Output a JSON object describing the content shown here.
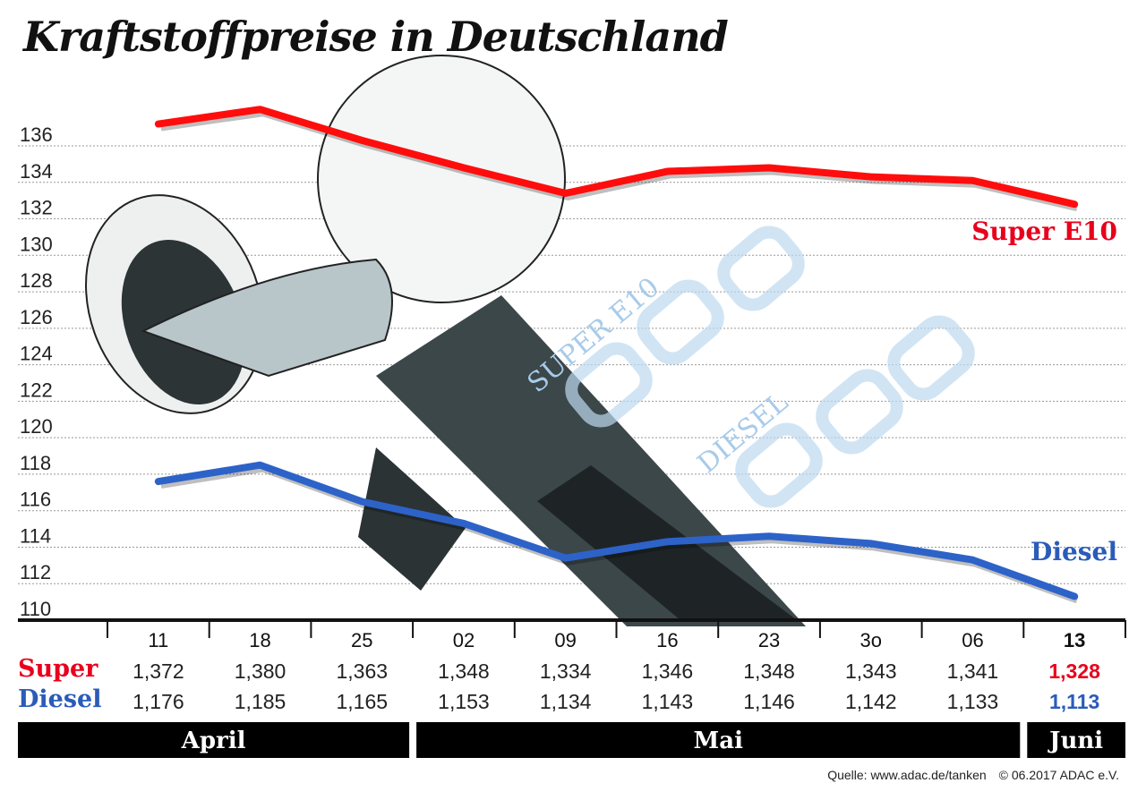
{
  "chart_data": {
    "type": "line",
    "title": "Kraftstoffpreise in Deutschland",
    "ylim": [
      110,
      136
    ],
    "yticks": [
      110,
      112,
      114,
      116,
      118,
      120,
      122,
      124,
      126,
      128,
      130,
      132,
      134,
      136
    ],
    "grid": true,
    "categories": [
      "11",
      "18",
      "25",
      "02",
      "09",
      "16",
      "23",
      "3o",
      "06",
      "13"
    ],
    "months": [
      {
        "label": "April",
        "span": 3
      },
      {
        "label": "Mai",
        "span": 6
      },
      {
        "label": "Juni",
        "span": 1
      }
    ],
    "series": [
      {
        "name": "Super E10",
        "row_label": "Super",
        "color": "#e8001c",
        "line_color": "#ff0d0d",
        "values": [
          137.2,
          138.0,
          136.3,
          134.8,
          133.4,
          134.6,
          134.8,
          134.3,
          134.1,
          132.8
        ],
        "table": [
          "1,372",
          "1,380",
          "1,363",
          "1,348",
          "1,334",
          "1,346",
          "1,348",
          "1,343",
          "1,341",
          "1,328"
        ]
      },
      {
        "name": "Diesel",
        "row_label": "Diesel",
        "color": "#2a5cb8",
        "line_color": "#2d63c8",
        "values": [
          117.6,
          118.5,
          116.5,
          115.3,
          113.4,
          114.3,
          114.6,
          114.2,
          113.3,
          111.3
        ],
        "table": [
          "1,176",
          "1,185",
          "1,165",
          "1,153",
          "1,134",
          "1,143",
          "1,146",
          "1,142",
          "1,133",
          "1,113"
        ]
      }
    ],
    "background_labels": [
      "SUPER E10",
      "DIESEL"
    ]
  },
  "source": "Quelle: www.adac.de/tanken",
  "copyright": "© 06.2017  ADAC e.V."
}
